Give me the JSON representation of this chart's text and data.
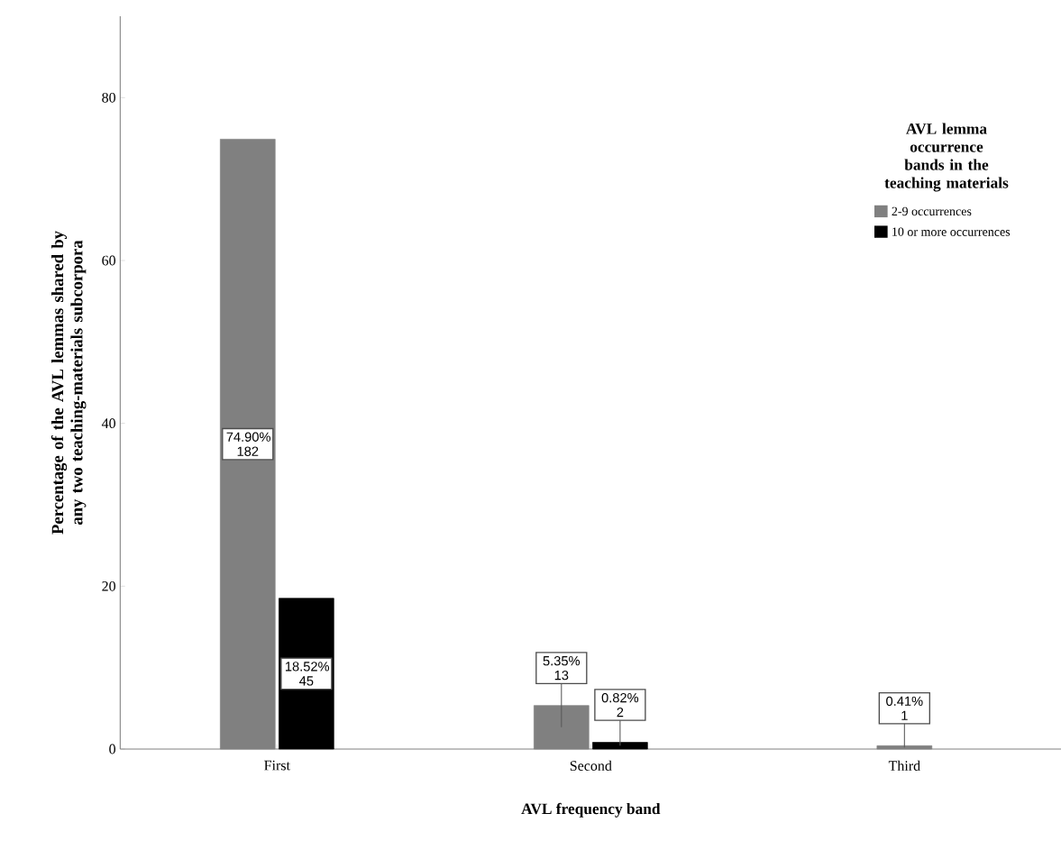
{
  "chart_data": {
    "type": "bar",
    "xlabel": "AVL frequency band",
    "ylabel": "Percentage of the AVL lemmas shared by any two teaching-materials subcorpora",
    "legend_title": "AVL lemma occurrence bands in the teaching materials",
    "categories": [
      "First",
      "Second",
      "Third"
    ],
    "series": [
      {
        "name": "2-9 occurrences",
        "color": "#808080",
        "values": [
          74.9,
          5.35,
          0.41
        ],
        "value_labels": [
          "74.90% 182",
          "5.35% 13",
          "0.41% 1"
        ]
      },
      {
        "name": "10 or more occurrences",
        "color": "#000000",
        "values": [
          18.52,
          0.82,
          null
        ],
        "value_labels": [
          "18.52% 45",
          "0.82% 2",
          null
        ]
      }
    ],
    "ylim": [
      0,
      90
    ],
    "yticks": [
      0,
      20,
      40,
      60,
      80
    ],
    "legend": "top right"
  }
}
